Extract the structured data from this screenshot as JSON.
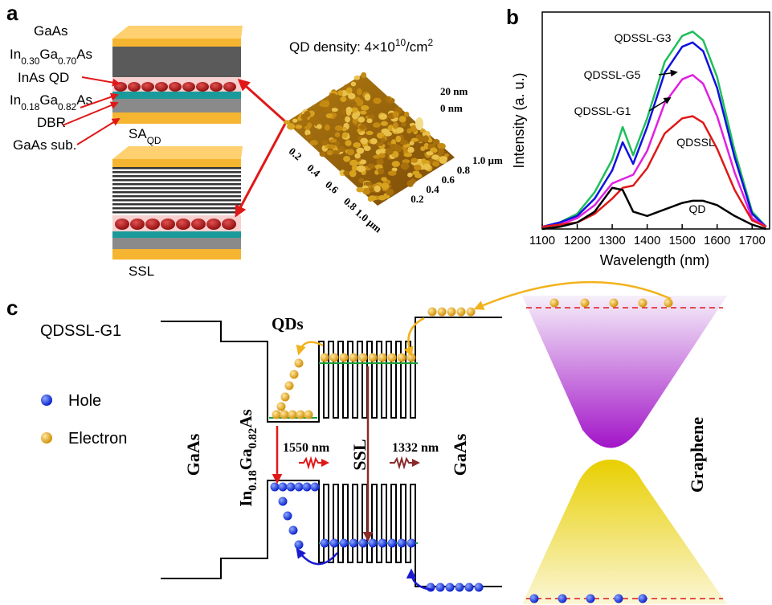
{
  "panel_labels": [
    "a",
    "b",
    "c"
  ],
  "panel_a": {
    "layers": [
      [
        {
          "text": "GaAs"
        }
      ],
      [
        {
          "text": "In"
        },
        {
          "sub": "0.30"
        },
        {
          "text": "Ga"
        },
        {
          "sub": "0.70"
        },
        {
          "text": "As"
        }
      ],
      [
        {
          "text": "InAs QD"
        }
      ],
      [
        {
          "text": "In"
        },
        {
          "sub": "0.18"
        },
        {
          "text": "Ga"
        },
        {
          "sub": "0.82"
        },
        {
          "text": "As"
        }
      ],
      [
        {
          "text": "DBR"
        }
      ],
      [
        {
          "text": "GaAs sub."
        }
      ]
    ],
    "sample_label": [
      {
        "text": "SA"
      },
      {
        "sub": "QD"
      }
    ],
    "ssl_label": "SSL",
    "afm": {
      "density": [
        {
          "text": "QD density: 4×10"
        },
        {
          "sup": "10"
        },
        {
          "text": "/cm"
        },
        {
          "sup": "2"
        }
      ],
      "z_ticks": [
        "20 nm",
        "0 nm"
      ],
      "y_ticks": [
        "0.2",
        "0.4",
        "0.6",
        "0.8",
        "1.0 µm"
      ],
      "x_ticks": [
        "0.2",
        "0.4",
        "0.6",
        "0.8",
        "1.0 µm"
      ]
    }
  },
  "chart_data": {
    "type": "line",
    "x_label": "Wavelength (nm)",
    "y_label": "Intensity (a. u.)",
    "x": [
      1100,
      1150,
      1200,
      1250,
      1300,
      1330,
      1360,
      1400,
      1450,
      1500,
      1530,
      1560,
      1600,
      1650,
      1700,
      1740
    ],
    "series": [
      {
        "name": "QDSSL-G3",
        "color": "#1fbf5a",
        "values": [
          0.01,
          0.03,
          0.07,
          0.17,
          0.32,
          0.47,
          0.34,
          0.51,
          0.77,
          0.89,
          0.91,
          0.87,
          0.7,
          0.36,
          0.08,
          0.01
        ]
      },
      {
        "name": "QDSSL-G5",
        "color": "#1010e0",
        "values": [
          0.01,
          0.03,
          0.06,
          0.14,
          0.27,
          0.4,
          0.3,
          0.47,
          0.72,
          0.84,
          0.86,
          0.82,
          0.65,
          0.33,
          0.07,
          0.01
        ]
      },
      {
        "name": "QDSSL-G1",
        "color": "#e020e0",
        "values": [
          0.01,
          0.02,
          0.05,
          0.11,
          0.21,
          0.23,
          0.25,
          0.36,
          0.58,
          0.69,
          0.71,
          0.67,
          0.52,
          0.26,
          0.05,
          0.01
        ]
      },
      {
        "name": "QDSSL",
        "color": "#e01818",
        "values": [
          0.01,
          0.02,
          0.03,
          0.07,
          0.14,
          0.19,
          0.2,
          0.28,
          0.44,
          0.51,
          0.52,
          0.49,
          0.37,
          0.18,
          0.04,
          0.01
        ]
      },
      {
        "name": "QD",
        "color": "#000000",
        "values": [
          0.0,
          0.01,
          0.03,
          0.08,
          0.19,
          0.18,
          0.08,
          0.06,
          0.09,
          0.12,
          0.13,
          0.13,
          0.11,
          0.06,
          0.02,
          0.0
        ]
      }
    ],
    "xlim": [
      1100,
      1750
    ],
    "xticks": [
      1100,
      1200,
      1300,
      1400,
      1500,
      1600,
      1700
    ],
    "ylim": [
      0,
      1
    ],
    "grid": false
  },
  "panel_c": {
    "sample": "QDSSL-G1",
    "legend": [
      "Hole",
      "Electron"
    ],
    "left_barrier": "GaAs",
    "well": [
      {
        "text": "In"
      },
      {
        "sub": "0.18"
      },
      {
        "text": "Ga"
      },
      {
        "sub": "0.82"
      },
      {
        "text": "As"
      }
    ],
    "qds": "QDs",
    "ssl": "SSL",
    "right_barrier": "GaAs",
    "graphene": "Graphene",
    "emissions": [
      "1550 nm",
      "1332 nm"
    ]
  }
}
